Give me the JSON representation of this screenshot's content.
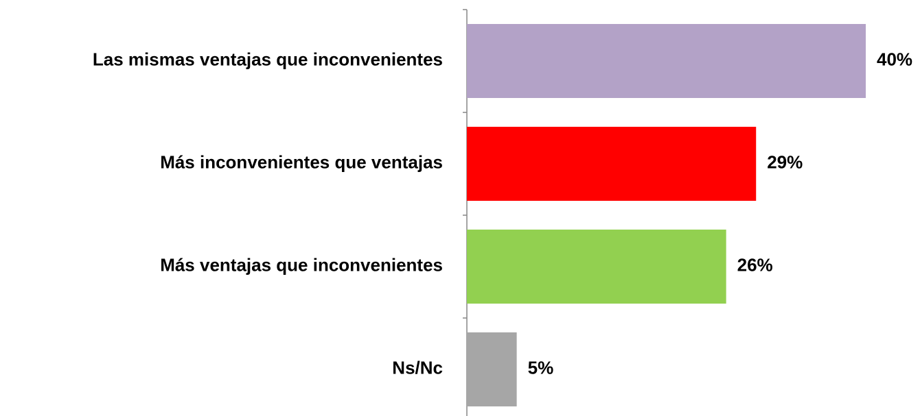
{
  "chart_data": {
    "type": "bar",
    "orientation": "horizontal",
    "categories": [
      "Las mismas ventajas que inconvenientes",
      "Más inconvenientes que ventajas",
      "Más ventajas que inconvenientes",
      "Ns/Nc"
    ],
    "values": [
      40,
      29,
      26,
      5
    ],
    "value_labels": [
      "40%",
      "29%",
      "26%",
      "5%"
    ],
    "colors": [
      "#b3a2c7",
      "#ff0000",
      "#92d050",
      "#a6a6a6"
    ]
  }
}
